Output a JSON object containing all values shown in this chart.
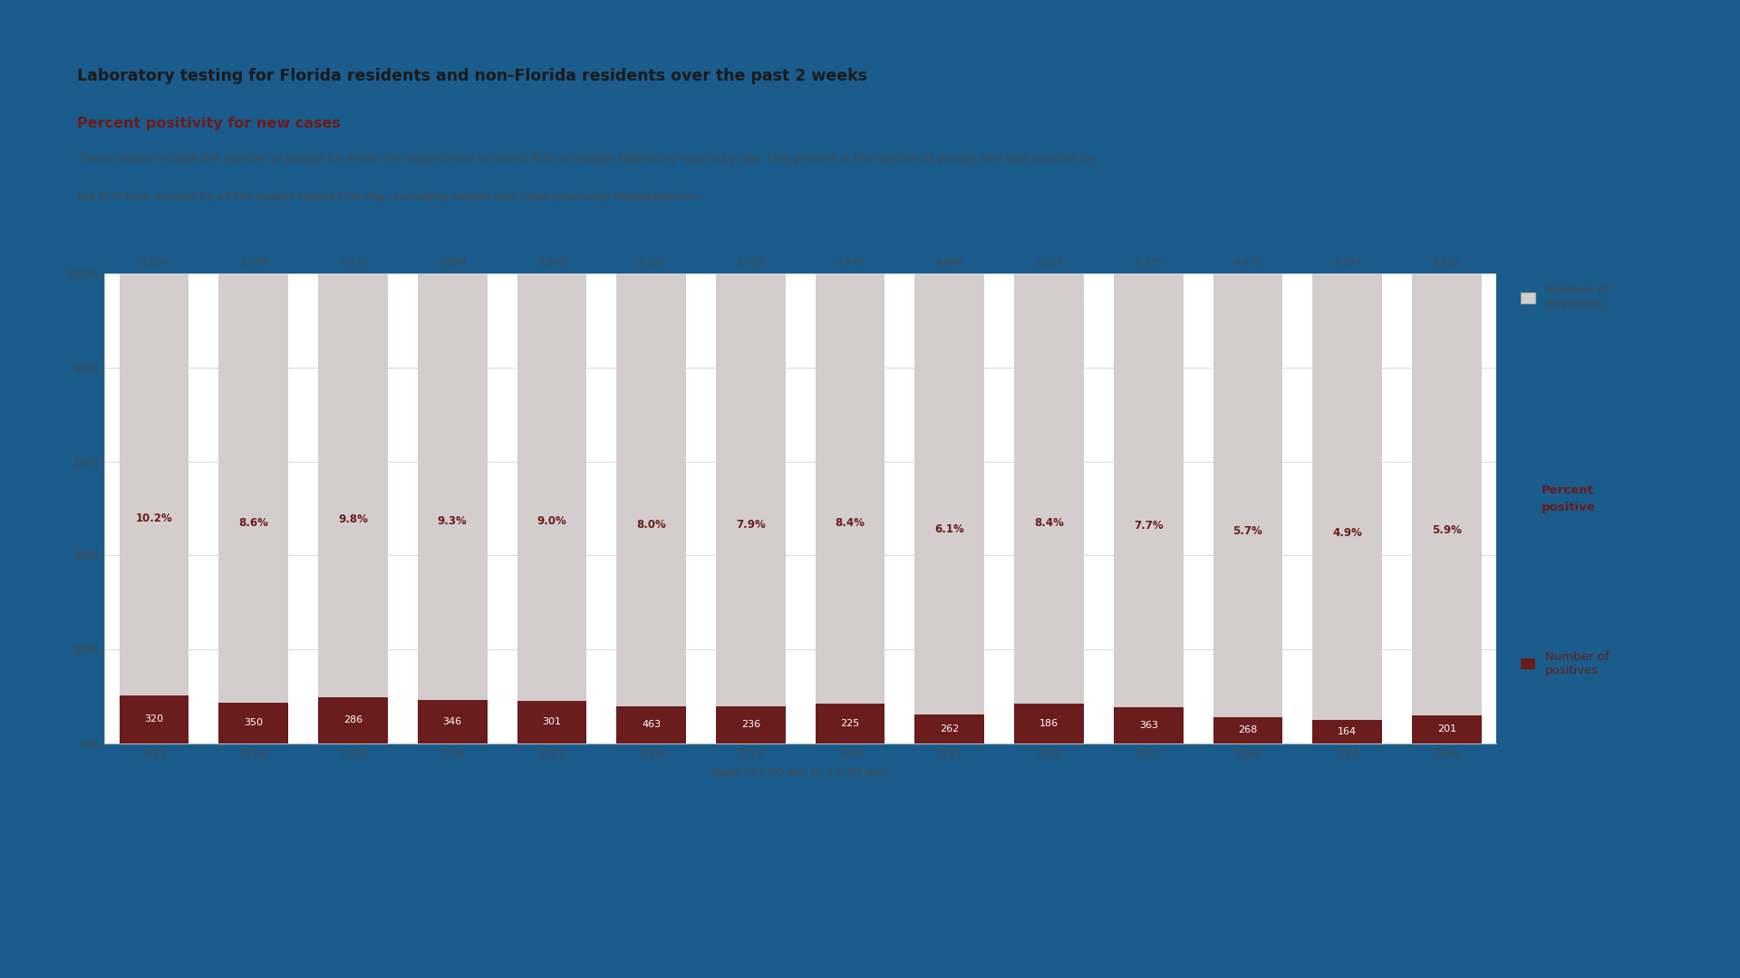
{
  "dates": [
    "7/13",
    "7/14",
    "7/15",
    "7/16",
    "7/17",
    "7/18",
    "7/19",
    "7/20",
    "7/21",
    "7/22",
    "7/23",
    "7/24",
    "7/25",
    "7/26"
  ],
  "negatives": [
    2824,
    3698,
    2633,
    3384,
    3040,
    5350,
    2756,
    2441,
    4048,
    2019,
    4375,
    4475,
    3174,
    3182
  ],
  "positives": [
    320,
    350,
    286,
    346,
    301,
    463,
    236,
    225,
    262,
    186,
    363,
    268,
    164,
    201
  ],
  "pct_positive": [
    "10.2%",
    "8.6%",
    "9.8%",
    "9.3%",
    "9.0%",
    "8.0%",
    "7.9%",
    "8.4%",
    "6.1%",
    "8.4%",
    "7.7%",
    "5.7%",
    "4.9%",
    "5.9%"
  ],
  "bar_color_neg": "#d3cecd",
  "bar_color_pos": "#6b1c1c",
  "title_main": "Laboratory testing for Florida residents and non-Florida residents over the past 2 weeks",
  "title_sub": "Percent positivity for new cases",
  "description_line1": "These counts include the number of people for whom the department received PCR or antigen laboratory results by day. This percent is the number of people who test positive for",
  "description_line2": "the first time divided by all the people tested that day, excluding people who have previously tested positive.",
  "xlabel": "Date (12:00 am to 11:59 pm)",
  "yticks": [
    0,
    20,
    40,
    60,
    80,
    100
  ],
  "ytick_labels": [
    "0%",
    "20%",
    "40%",
    "60%",
    "80%",
    "100%"
  ],
  "legend_neg_label": "Number of\nnegatives",
  "legend_pct_label": "Percent\npositive",
  "legend_pos_label": "Number of\npositives",
  "bg_outer": "#1a5c8c",
  "bg_chart_area": "#ffffff",
  "bg_header": "#f2e0e0",
  "title_color": "#1a1a1a",
  "subtitle_color": "#6b1c1c",
  "text_color": "#4a4a4a",
  "annotation_color": "#4a4a4a",
  "legend_neg_color": "#d3cecd",
  "legend_pos_color": "#6b1c1c",
  "legend_pct_color": "#6b1c1c"
}
